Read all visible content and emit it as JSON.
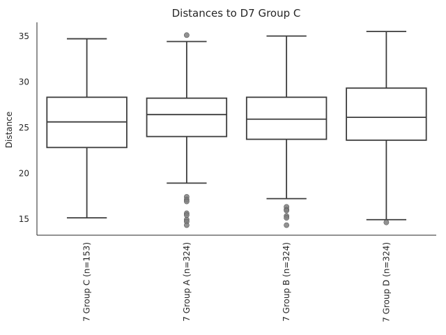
{
  "chart_data": {
    "type": "box",
    "title": "Distances to D7 Group C",
    "ylabel": "Distance",
    "xlabel": "",
    "ylim": [
      13.2,
      36.5
    ],
    "y_ticks": [
      15,
      20,
      25,
      30,
      35
    ],
    "grid": false,
    "categories": [
      "7 Group C (n=153)",
      "7 Group A (n=324)",
      "7 Group B (n=324)",
      "7 Group D (n=324)"
    ],
    "boxes": [
      {
        "category": "7 Group C (n=153)",
        "whisker_low": 15.1,
        "q1": 22.8,
        "median": 25.6,
        "q3": 28.3,
        "whisker_high": 34.7,
        "outliers": []
      },
      {
        "category": "7 Group A (n=324)",
        "whisker_low": 18.9,
        "q1": 24.0,
        "median": 26.4,
        "q3": 28.2,
        "whisker_high": 34.4,
        "outliers": [
          35.1,
          17.4,
          17.1,
          16.9,
          15.6,
          15.4,
          14.9,
          14.7,
          14.3
        ]
      },
      {
        "category": "7 Group B (n=324)",
        "whisker_low": 17.2,
        "q1": 23.7,
        "median": 25.9,
        "q3": 28.3,
        "whisker_high": 35.0,
        "outliers": [
          16.3,
          16.0,
          15.9,
          15.3,
          15.1,
          14.3
        ]
      },
      {
        "category": "7 Group D (n=324)",
        "whisker_low": 14.9,
        "q1": 23.6,
        "median": 26.1,
        "q3": 29.3,
        "whisker_high": 35.5,
        "outliers": [
          14.6
        ]
      }
    ],
    "colors": {
      "line": "#3d3d3d",
      "box_fill": "#ffffff",
      "outlier": "#7f7f7f",
      "text": "#262626"
    }
  }
}
